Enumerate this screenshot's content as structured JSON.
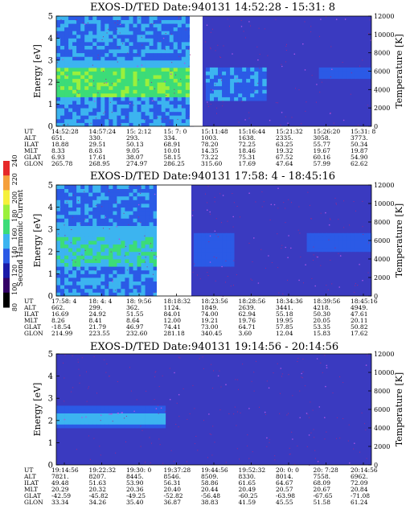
{
  "colorbar": {
    "label": "Second Harmonic Current",
    "ticks": [
      "80",
      "100",
      "120",
      "140",
      "160",
      "180",
      "200",
      "220",
      "240"
    ]
  },
  "ephemeris_labels": [
    "UT",
    "ALT",
    "ILAT",
    "MLT",
    "GLAT",
    "GLON"
  ],
  "panels": [
    {
      "title": "EXOS-D/TED   Date:940131  14:52:28 - 15:31: 8",
      "columns": [
        [
          "14:52:28",
          "651.",
          "18.88",
          "8.33",
          "6.93",
          "265.78"
        ],
        [
          "14:57:24",
          "330.",
          "29.51",
          "8.63",
          "17.61",
          "268.95"
        ],
        [
          "15: 2:12",
          "293.",
          "50.13",
          "9.05",
          "38.07",
          "274.97"
        ],
        [
          "15: 7: 0",
          "334.",
          "68.91",
          "10.01",
          "58.15",
          "286.25"
        ],
        [
          "15:11:48",
          "1003.",
          "78.20",
          "14.35",
          "73.22",
          "315.60"
        ],
        [
          "15:16:44",
          "1638.",
          "72.25",
          "18.46",
          "75.31",
          "17.69"
        ],
        [
          "15:21:32",
          "2335.",
          "63.25",
          "19.32",
          "67.52",
          "47.64"
        ],
        [
          "15:26:20",
          "3058.",
          "55.77",
          "19.67",
          "60.16",
          "57.99"
        ],
        [
          "15:31: 8",
          "3773.",
          "50.34",
          "19.87",
          "54.90",
          "62.62"
        ]
      ]
    },
    {
      "title": "EXOS-D/TED   Date:940131  17:58: 4 - 18:45:16",
      "columns": [
        [
          "17:58: 4",
          "662.",
          "16.69",
          "8.26",
          "-18.54",
          "214.99"
        ],
        [
          "18: 4: 4",
          "299.",
          "24.92",
          "8.41",
          "21.79",
          "223.55"
        ],
        [
          "18: 9:56",
          "362.",
          "51.55",
          "8.64",
          "46.97",
          "232.60"
        ],
        [
          "18:18:32",
          "1124.",
          "84.01",
          "12.00",
          "74.41",
          "281.18"
        ],
        [
          "18:23:56",
          "1849.",
          "74.00",
          "19.21",
          "73.00",
          "340.45"
        ],
        [
          "18:28:56",
          "2639.",
          "62.94",
          "19.76",
          "64.71",
          "3.60"
        ],
        [
          "18:34:36",
          "3441.",
          "55.18",
          "19.95",
          "57.85",
          "12.04"
        ],
        [
          "18:39:56",
          "4218.",
          "50.30",
          "20.05",
          "53.35",
          "15.83"
        ],
        [
          "18:45:16",
          "4949.",
          "47.61",
          "20.11",
          "50.82",
          "17.62"
        ]
      ]
    },
    {
      "title": "EXOS-D/TED   Date:940131  19:14:56 - 20:14:56",
      "columns": [
        [
          "19:14:56",
          "7821.",
          "49.48",
          "20.29",
          "-42.59",
          "33.34"
        ],
        [
          "19:22:32",
          "8207.",
          "51.63",
          "20.32",
          "-45.82",
          "34.26"
        ],
        [
          "19:30: 0",
          "8445.",
          "53.90",
          "20.36",
          "-49.25",
          "35.40"
        ],
        [
          "19:37:28",
          "8546.",
          "56.31",
          "20.40",
          "-52.82",
          "36.87"
        ],
        [
          "19:44:56",
          "8509.",
          "58.86",
          "20.44",
          "-56.48",
          "38.83"
        ],
        [
          "19:52:32",
          "8330.",
          "61.65",
          "20.49",
          "-60.25",
          "41.59"
        ],
        [
          "20: 0: 0",
          "8014.",
          "64.67",
          "20.57",
          "-63.98",
          "45.55"
        ],
        [
          "20: 7:28",
          "7558.",
          "68.09",
          "20.67",
          "-67.65",
          "51.58"
        ],
        [
          "20:14:56",
          "6962.",
          "72.09",
          "20.84",
          "-71.08",
          "61.24"
        ]
      ]
    }
  ],
  "chart_data": {
    "type": "heatmap",
    "xlabel": "UT",
    "ylabel": "Energy [eV]",
    "ylabel_right": "Temperature [K]",
    "ylim": [
      0,
      5
    ],
    "ylim_right": [
      0,
      12000
    ],
    "yticks": [
      "0",
      "1",
      "2",
      "3",
      "4",
      "5"
    ],
    "yticks_right": [
      "0",
      "2000",
      "4000",
      "6000",
      "8000",
      "10000",
      "12000"
    ],
    "colorbar_range": [
      80,
      240
    ],
    "colors": {
      "cb": [
        "#000000",
        "#330066",
        "#1a1aa8",
        "#2b5ae6",
        "#3cb4f0",
        "#3cdc78",
        "#9bf03c",
        "#f5f03c",
        "#f5a03c",
        "#e62828"
      ],
      "bg": "#3a3ac0",
      "speck": "#9a2a8a",
      "temperature": "#a855e6"
    }
  }
}
